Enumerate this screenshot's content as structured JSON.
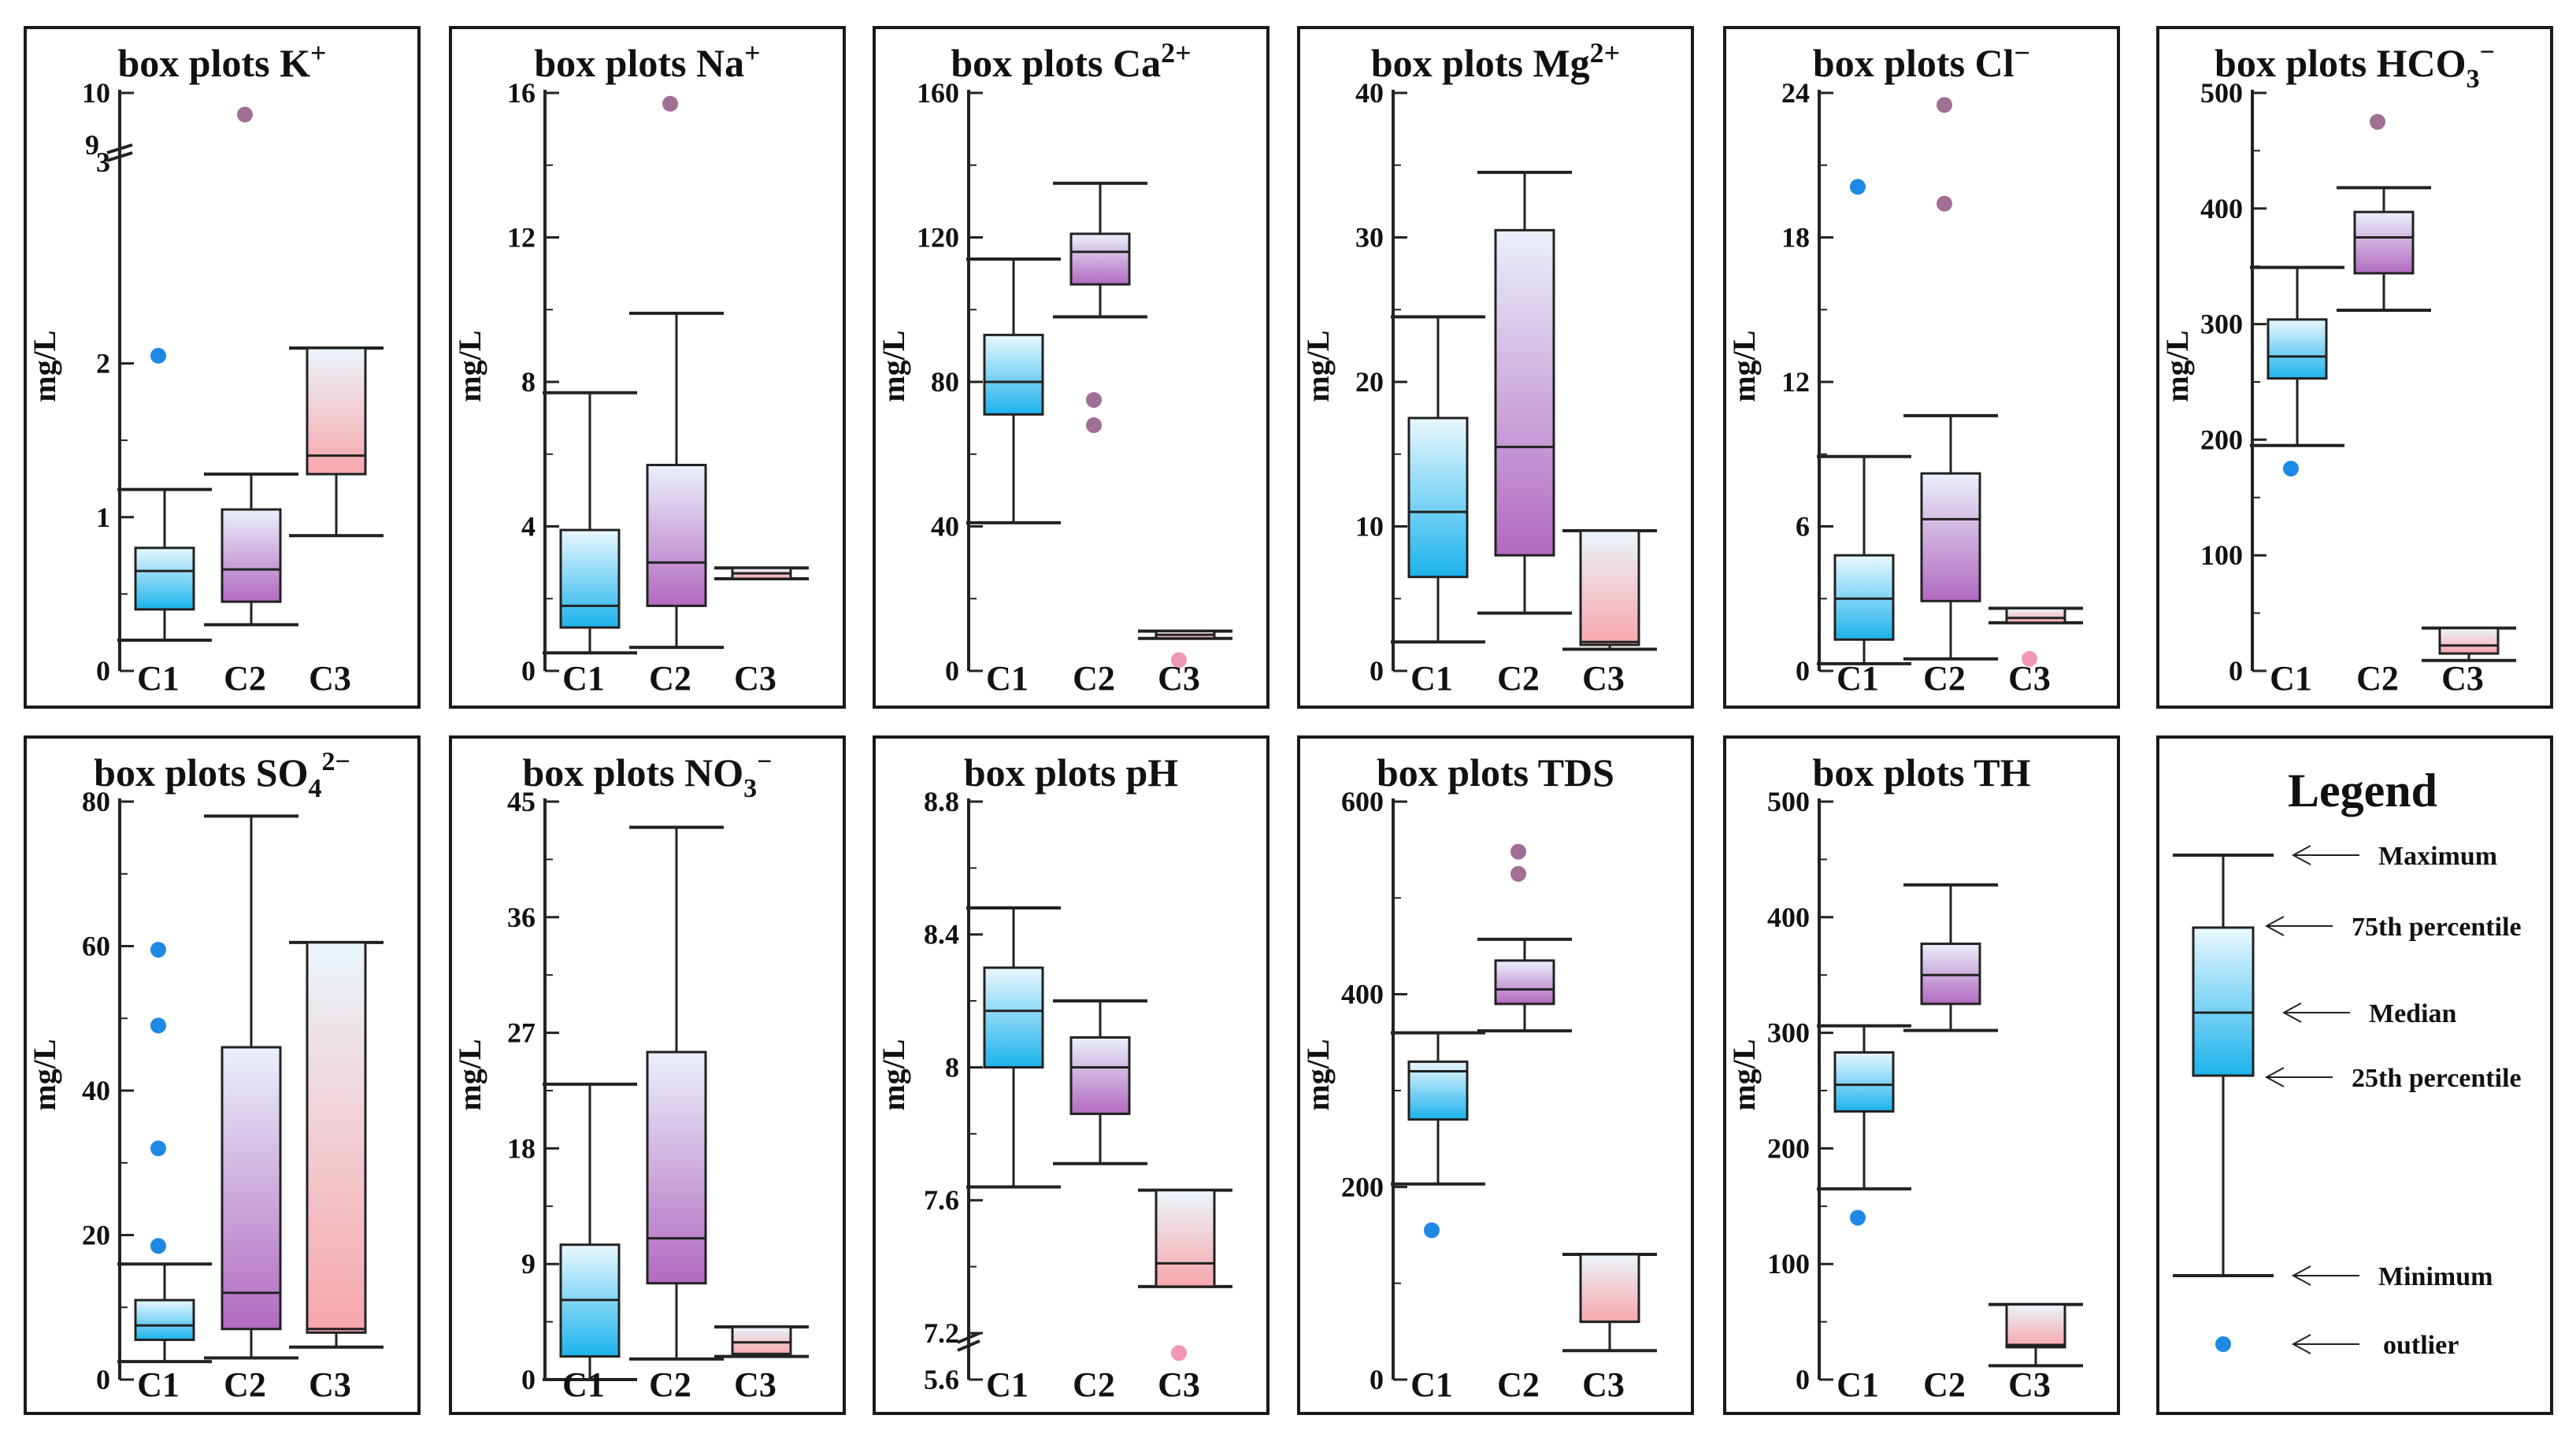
{
  "colors": {
    "frame": "#1a1a1a",
    "outline": "#222222",
    "cool_top": "#eaf8fe",
    "cool_bottom": "#1cb3ec",
    "violet_top": "#eaf1fb",
    "violet_bottom": "#b26ac0",
    "warm_top": "#eaf6fb",
    "warm_bottom": "#f7a6ac",
    "cool_outlier": "#1e88e5",
    "violet_outlier": "#a06f93",
    "warm_outlier": "#f098b4"
  },
  "chart_data": [
    {
      "type": "box",
      "title_main": "box plots K",
      "title_ion": "+",
      "ion_kind": "sup",
      "ylabel": "mg/L",
      "ylim": [
        0,
        3.35
      ],
      "yticks": [
        0,
        1,
        2
      ],
      "axis_break": {
        "below_label": "3",
        "above_label": "9",
        "top_label": "10",
        "top_value": 10
      },
      "categories": [
        "C1",
        "C2",
        "C3"
      ],
      "boxes": [
        {
          "name": "C1",
          "min": 0.2,
          "q1": 0.4,
          "median": 0.65,
          "q3": 0.8,
          "max": 1.18,
          "outliers": [
            2.05
          ]
        },
        {
          "name": "C2",
          "min": 0.3,
          "q1": 0.45,
          "median": 0.66,
          "q3": 1.05,
          "max": 1.28,
          "outliers": [
            9.5
          ]
        },
        {
          "name": "C3",
          "min": 0.88,
          "q1": 1.28,
          "median": 1.4,
          "q3": 2.1,
          "max": 2.1,
          "outliers": []
        }
      ]
    },
    {
      "type": "box",
      "title_main": "box plots Na",
      "title_ion": "+",
      "ion_kind": "sup",
      "ylabel": "mg/L",
      "ylim": [
        0,
        16
      ],
      "yticks": [
        0,
        4,
        8,
        12,
        16
      ],
      "categories": [
        "C1",
        "C2",
        "C3"
      ],
      "boxes": [
        {
          "name": "C1",
          "min": 0.5,
          "q1": 1.2,
          "median": 1.8,
          "q3": 3.9,
          "max": 7.7,
          "outliers": []
        },
        {
          "name": "C2",
          "min": 0.65,
          "q1": 1.8,
          "median": 3.0,
          "q3": 5.7,
          "max": 9.9,
          "outliers": [
            15.7
          ]
        },
        {
          "name": "C3",
          "min": 2.55,
          "q1": 2.55,
          "median": 2.7,
          "q3": 2.85,
          "max": 2.85,
          "outliers": []
        }
      ]
    },
    {
      "type": "box",
      "title_main": "box plots Ca",
      "title_ion": "2+",
      "ion_kind": "sup",
      "ylabel": "mg/L",
      "ylim": [
        0,
        160
      ],
      "yticks": [
        0,
        40,
        80,
        120,
        160
      ],
      "categories": [
        "C1",
        "C2",
        "C3"
      ],
      "boxes": [
        {
          "name": "C1",
          "min": 41,
          "q1": 71,
          "median": 80,
          "q3": 93,
          "max": 114,
          "outliers": []
        },
        {
          "name": "C2",
          "min": 98,
          "q1": 107,
          "median": 116,
          "q3": 121,
          "max": 135,
          "outliers": [
            75,
            68
          ]
        },
        {
          "name": "C3",
          "min": 9,
          "q1": 9,
          "median": 10,
          "q3": 11,
          "max": 11,
          "outliers": [
            3
          ]
        }
      ]
    },
    {
      "type": "box",
      "title_main": "box plots Mg",
      "title_ion": "2+",
      "ion_kind": "sup",
      "ylabel": "mg/L",
      "ylim": [
        0,
        40
      ],
      "yticks": [
        0,
        10,
        20,
        30,
        40
      ],
      "categories": [
        "C1",
        "C2",
        "C3"
      ],
      "boxes": [
        {
          "name": "C1",
          "min": 2,
          "q1": 6.5,
          "median": 11,
          "q3": 17.5,
          "max": 24.5,
          "outliers": []
        },
        {
          "name": "C2",
          "min": 4,
          "q1": 8,
          "median": 15.5,
          "q3": 30.5,
          "max": 34.5,
          "outliers": []
        },
        {
          "name": "C3",
          "min": 1.5,
          "q1": 1.8,
          "median": 2,
          "q3": 9.7,
          "max": 9.7,
          "outliers": []
        }
      ]
    },
    {
      "type": "box",
      "title_main": "box plots Cl",
      "title_ion": "−",
      "ion_kind": "sup",
      "ylabel": "mg/L",
      "ylim": [
        0,
        24
      ],
      "yticks": [
        0,
        6,
        12,
        18,
        24
      ],
      "categories": [
        "C1",
        "C2",
        "C3"
      ],
      "boxes": [
        {
          "name": "C1",
          "min": 0.3,
          "q1": 1.3,
          "median": 3.0,
          "q3": 4.8,
          "max": 8.9,
          "outliers": [
            20.1
          ]
        },
        {
          "name": "C2",
          "min": 0.5,
          "q1": 2.9,
          "median": 6.3,
          "q3": 8.2,
          "max": 10.6,
          "outliers": [
            23.5,
            19.4
          ]
        },
        {
          "name": "C3",
          "min": 2.0,
          "q1": 2.0,
          "median": 2.2,
          "q3": 2.6,
          "max": 2.6,
          "outliers": [
            0.5
          ]
        }
      ]
    },
    {
      "type": "box",
      "title_main": "box plots HCO",
      "title_sub": "3",
      "title_ion": "−",
      "ion_kind": "sup",
      "ylabel": "mg/L",
      "ylim": [
        0,
        500
      ],
      "yticks": [
        0,
        100,
        200,
        300,
        400,
        500
      ],
      "categories": [
        "C1",
        "C2",
        "C3"
      ],
      "boxes": [
        {
          "name": "C1",
          "min": 195,
          "q1": 253,
          "median": 272,
          "q3": 304,
          "max": 349,
          "outliers": [
            175
          ]
        },
        {
          "name": "C2",
          "min": 312,
          "q1": 344,
          "median": 375,
          "q3": 397,
          "max": 418,
          "outliers": [
            475
          ]
        },
        {
          "name": "C3",
          "min": 9,
          "q1": 15,
          "median": 22,
          "q3": 37,
          "max": 37,
          "outliers": []
        }
      ]
    },
    {
      "type": "box",
      "title_main": "box plots SO",
      "title_sub": "4",
      "title_ion": "2−",
      "ion_kind": "sup",
      "ylabel": "mg/L",
      "ylim": [
        0,
        80
      ],
      "yticks": [
        0,
        20,
        40,
        60,
        80
      ],
      "categories": [
        "C1",
        "C2",
        "C3"
      ],
      "boxes": [
        {
          "name": "C1",
          "min": 2.5,
          "q1": 5.5,
          "median": 7.5,
          "q3": 11,
          "max": 16,
          "outliers": [
            59.5,
            49,
            32,
            18.5
          ]
        },
        {
          "name": "C2",
          "min": 3,
          "q1": 7,
          "median": 12,
          "q3": 46,
          "max": 78,
          "outliers": []
        },
        {
          "name": "C3",
          "min": 4.5,
          "q1": 6.5,
          "median": 7,
          "q3": 60.5,
          "max": 60.5,
          "outliers": []
        }
      ]
    },
    {
      "type": "box",
      "title_main": "box plots NO",
      "title_sub": "3",
      "title_ion": "−",
      "ion_kind": "sup",
      "ylabel": "mg/L",
      "ylim": [
        0,
        45
      ],
      "yticks": [
        0,
        9,
        18,
        27,
        36,
        45
      ],
      "categories": [
        "C1",
        "C2",
        "C3"
      ],
      "boxes": [
        {
          "name": "C1",
          "min": 0,
          "q1": 1.8,
          "median": 6.2,
          "q3": 10.5,
          "max": 23,
          "outliers": []
        },
        {
          "name": "C2",
          "min": 1.6,
          "q1": 7.5,
          "median": 11,
          "q3": 25.5,
          "max": 43,
          "outliers": []
        },
        {
          "name": "C3",
          "min": 1.8,
          "q1": 2,
          "median": 2.9,
          "q3": 4.1,
          "max": 4.1,
          "outliers": []
        }
      ]
    },
    {
      "type": "box",
      "title_main": "box plots pH",
      "ylabel": "",
      "ylim": [
        7.06,
        8.8
      ],
      "yticks": [
        7.2,
        7.6,
        8,
        8.4,
        8.8
      ],
      "axis_break": {
        "bottom_label": "5.6",
        "at_value": 7.2
      },
      "categories": [
        "C1",
        "C2",
        "C3"
      ],
      "boxes": [
        {
          "name": "C1",
          "min": 7.64,
          "q1": 8.0,
          "median": 8.17,
          "q3": 8.3,
          "max": 8.48,
          "outliers": []
        },
        {
          "name": "C2",
          "min": 7.71,
          "q1": 7.86,
          "median": 8.0,
          "q3": 8.09,
          "max": 8.2,
          "outliers": []
        },
        {
          "name": "C3",
          "min": 7.34,
          "q1": 7.34,
          "median": 7.41,
          "q3": 7.63,
          "max": 7.63,
          "outliers": [
            7.14
          ]
        }
      ]
    },
    {
      "type": "box",
      "title_main": "box plots TDS",
      "ylabel": "mg/L",
      "ylim": [
        0,
        600
      ],
      "yticks": [
        0,
        200,
        400,
        600
      ],
      "categories": [
        "C1",
        "C2",
        "C3"
      ],
      "boxes": [
        {
          "name": "C1",
          "min": 203,
          "q1": 270,
          "median": 320,
          "q3": 330,
          "max": 360,
          "outliers": [
            155
          ]
        },
        {
          "name": "C2",
          "min": 362,
          "q1": 390,
          "median": 405,
          "q3": 435,
          "max": 457,
          "outliers": [
            548,
            525
          ]
        },
        {
          "name": "C3",
          "min": 30,
          "q1": 60,
          "median": 60,
          "q3": 130,
          "max": 130,
          "outliers": []
        }
      ]
    },
    {
      "type": "box",
      "title_main": "box plots TH",
      "ylabel": "mg/L",
      "ylim": [
        0,
        500
      ],
      "yticks": [
        0,
        100,
        200,
        300,
        400,
        500
      ],
      "categories": [
        "C1",
        "C2",
        "C3"
      ],
      "boxes": [
        {
          "name": "C1",
          "min": 165,
          "q1": 232,
          "median": 255,
          "q3": 283,
          "max": 306,
          "outliers": [
            140
          ]
        },
        {
          "name": "C2",
          "min": 302,
          "q1": 325,
          "median": 350,
          "q3": 377,
          "max": 428,
          "outliers": []
        },
        {
          "name": "C3",
          "min": 12,
          "q1": 28,
          "median": 30,
          "q3": 65,
          "max": 65,
          "outliers": []
        }
      ]
    }
  ],
  "legend": {
    "title": "Legend",
    "maximum": "Maximum",
    "q3": "75th percentile",
    "median": "Median",
    "q1": "25th percentile",
    "minimum": "Minimum",
    "outlier": "outlier"
  }
}
